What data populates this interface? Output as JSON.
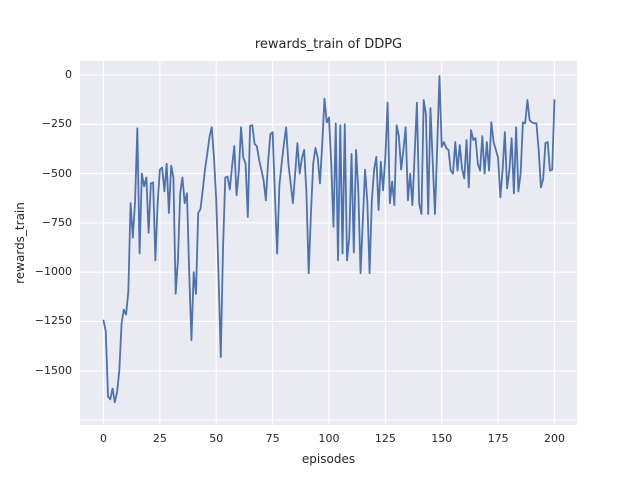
{
  "figure": {
    "title": "rewards_train of DDPG",
    "xlabel": "episodes",
    "ylabel": "rewards_train"
  },
  "colors": {
    "figure_bg": "#ffffff",
    "axes_bg": "#eaeaf2",
    "grid": "#ffffff",
    "line": "#4c72b0",
    "text": "#262626"
  },
  "chart_data": {
    "type": "line",
    "title": "rewards_train of DDPG",
    "xlabel": "episodes",
    "ylabel": "rewards_train",
    "grid": true,
    "legend": null,
    "xlim": [
      -10.43,
      210
    ],
    "ylim": [
      -1775,
      71
    ],
    "x_ticks": [
      0,
      25,
      50,
      75,
      100,
      125,
      150,
      175,
      200
    ],
    "x_tick_labels": [
      "0",
      "25",
      "50",
      "75",
      "100",
      "125",
      "150",
      "175",
      "200"
    ],
    "y_ticks": [
      0,
      -250,
      -500,
      -750,
      -1000,
      -1250,
      -1500
    ],
    "y_tick_labels": [
      "0",
      "−250",
      "−500",
      "−750",
      "−1000",
      "−1250",
      "−1500"
    ],
    "x_grid": [
      0,
      25,
      50,
      75,
      100,
      125,
      150,
      175,
      200
    ],
    "y_grid": [
      0,
      -250,
      -500,
      -750,
      -1000,
      -1250,
      -1500,
      -1750
    ],
    "series": [
      {
        "name": "rewards_train",
        "color": "#4c72b0",
        "x_start": 0,
        "x_step": 1,
        "values": [
          -1245,
          -1300,
          -1630,
          -1645,
          -1590,
          -1660,
          -1610,
          -1500,
          -1260,
          -1190,
          -1215,
          -1100,
          -650,
          -825,
          -640,
          -270,
          -905,
          -500,
          -565,
          -520,
          -800,
          -550,
          -545,
          -940,
          -650,
          -480,
          -470,
          -590,
          -450,
          -700,
          -460,
          -520,
          -1110,
          -940,
          -600,
          -520,
          -650,
          -600,
          -1000,
          -1345,
          -1000,
          -1110,
          -700,
          -680,
          -585,
          -480,
          -400,
          -315,
          -265,
          -420,
          -635,
          -1010,
          -1430,
          -880,
          -520,
          -515,
          -580,
          -465,
          -360,
          -610,
          -490,
          -265,
          -420,
          -450,
          -720,
          -258,
          -255,
          -350,
          -360,
          -430,
          -480,
          -535,
          -635,
          -440,
          -300,
          -290,
          -600,
          -905,
          -560,
          -450,
          -350,
          -265,
          -450,
          -550,
          -650,
          -500,
          -345,
          -500,
          -420,
          -380,
          -600,
          -1005,
          -700,
          -450,
          -370,
          -420,
          -550,
          -350,
          -120,
          -240,
          -215,
          -450,
          -770,
          -245,
          -940,
          -255,
          -905,
          -250,
          -940,
          -825,
          -400,
          -900,
          -380,
          -585,
          -1005,
          -740,
          -480,
          -640,
          -1005,
          -640,
          -480,
          -415,
          -685,
          -440,
          -585,
          -415,
          -140,
          -650,
          -540,
          -660,
          -255,
          -310,
          -480,
          -380,
          -265,
          -635,
          -500,
          -660,
          -400,
          -140,
          -650,
          -705,
          -127,
          -200,
          -705,
          -168,
          -440,
          -705,
          -360,
          -5,
          -365,
          -340,
          -370,
          -380,
          -485,
          -500,
          -340,
          -485,
          -355,
          -475,
          -525,
          -330,
          -570,
          -280,
          -330,
          -320,
          -450,
          -485,
          -310,
          -500,
          -340,
          -485,
          -240,
          -340,
          -380,
          -420,
          -620,
          -480,
          -290,
          -575,
          -485,
          -320,
          -600,
          -265,
          -590,
          -500,
          -240,
          -245,
          -127,
          -230,
          -240,
          -245,
          -245,
          -380,
          -570,
          -525,
          -345,
          -340,
          -485,
          -480,
          -127
        ]
      }
    ]
  }
}
